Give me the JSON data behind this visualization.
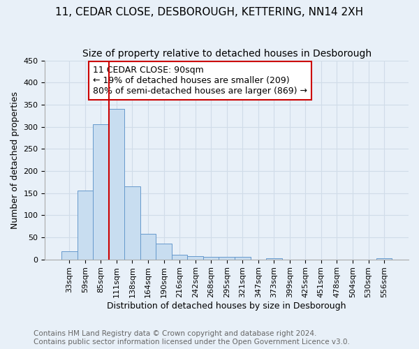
{
  "title": "11, CEDAR CLOSE, DESBOROUGH, KETTERING, NN14 2XH",
  "subtitle": "Size of property relative to detached houses in Desborough",
  "xlabel": "Distribution of detached houses by size in Desborough",
  "ylabel": "Number of detached properties",
  "categories": [
    "33sqm",
    "59sqm",
    "85sqm",
    "111sqm",
    "138sqm",
    "164sqm",
    "190sqm",
    "216sqm",
    "242sqm",
    "268sqm",
    "295sqm",
    "321sqm",
    "347sqm",
    "373sqm",
    "399sqm",
    "425sqm",
    "451sqm",
    "478sqm",
    "504sqm",
    "530sqm",
    "556sqm"
  ],
  "values": [
    18,
    155,
    306,
    341,
    165,
    57,
    36,
    10,
    7,
    5,
    5,
    5,
    0,
    3,
    0,
    0,
    0,
    0,
    0,
    0,
    3
  ],
  "bar_color": "#c8ddf0",
  "bar_edge_color": "#6699cc",
  "vline_color": "#cc0000",
  "vline_x_index": 2.5,
  "annotation_text": "11 CEDAR CLOSE: 90sqm\n← 19% of detached houses are smaller (209)\n80% of semi-detached houses are larger (869) →",
  "annotation_box_color": "#ffffff",
  "annotation_box_edge_color": "#cc0000",
  "footer_line1": "Contains HM Land Registry data © Crown copyright and database right 2024.",
  "footer_line2": "Contains public sector information licensed under the Open Government Licence v3.0.",
  "ylim": [
    0,
    450
  ],
  "yticks": [
    0,
    50,
    100,
    150,
    200,
    250,
    300,
    350,
    400,
    450
  ],
  "background_color": "#e8f0f8",
  "grid_color": "#d0dce8",
  "title_fontsize": 11,
  "subtitle_fontsize": 10,
  "axis_label_fontsize": 9,
  "tick_fontsize": 8,
  "annotation_fontsize": 9,
  "footer_fontsize": 7.5
}
